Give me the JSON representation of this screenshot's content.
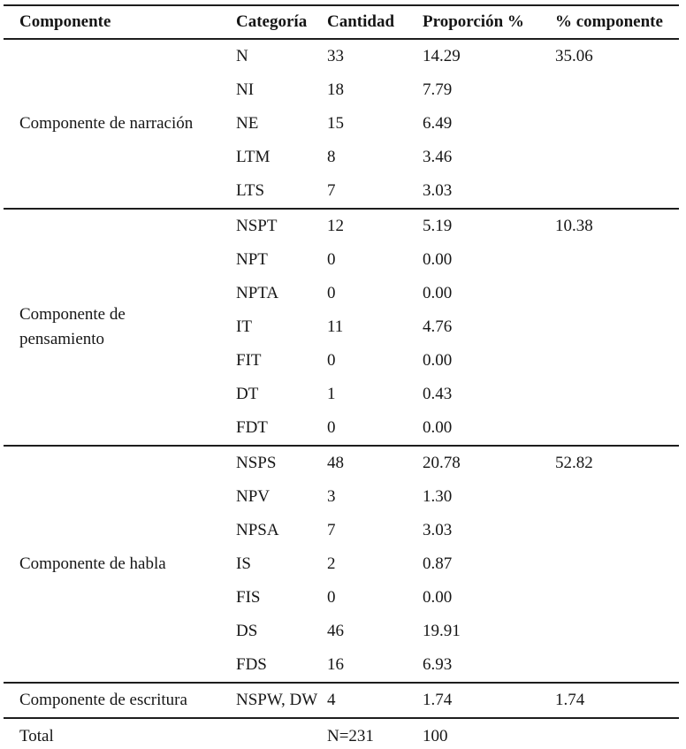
{
  "table": {
    "columns": [
      "Componente",
      "Categoría",
      "Cantidad",
      "Proporción %",
      "% componente"
    ],
    "groups": [
      {
        "component": "Componente de narración",
        "rows": [
          [
            "N",
            "33",
            "14.29",
            "35.06"
          ],
          [
            "NI",
            "18",
            "7.79",
            ""
          ],
          [
            "NE",
            "15",
            "6.49",
            ""
          ],
          [
            "LTM",
            "8",
            "3.46",
            ""
          ],
          [
            "LTS",
            "7",
            "3.03",
            ""
          ]
        ]
      },
      {
        "component": "Componente de\npensamiento",
        "rows": [
          [
            "NSPT",
            "12",
            "5.19",
            "10.38"
          ],
          [
            "NPT",
            "0",
            "0.00",
            ""
          ],
          [
            "NPTA",
            "0",
            "0.00",
            ""
          ],
          [
            "IT",
            "11",
            "4.76",
            ""
          ],
          [
            "FIT",
            "0",
            "0.00",
            ""
          ],
          [
            "DT",
            "1",
            "0.43",
            ""
          ],
          [
            "FDT",
            "0",
            "0.00",
            ""
          ]
        ]
      },
      {
        "component": "Componente de habla",
        "rows": [
          [
            "NSPS",
            "48",
            "20.78",
            "52.82"
          ],
          [
            "NPV",
            "3",
            "1.30",
            ""
          ],
          [
            "NPSA",
            "7",
            "3.03",
            ""
          ],
          [
            "IS",
            "2",
            "0.87",
            ""
          ],
          [
            "FIS",
            "0",
            "0.00",
            ""
          ],
          [
            "DS",
            "46",
            "19.91",
            ""
          ],
          [
            "FDS",
            "16",
            "6.93",
            ""
          ]
        ]
      },
      {
        "component": "Componente de escritura",
        "rows": [
          [
            "NSPW, DW",
            "4",
            "1.74",
            "1.74"
          ]
        ]
      }
    ],
    "total": [
      "Total",
      "",
      "N=231",
      "100",
      ""
    ]
  }
}
